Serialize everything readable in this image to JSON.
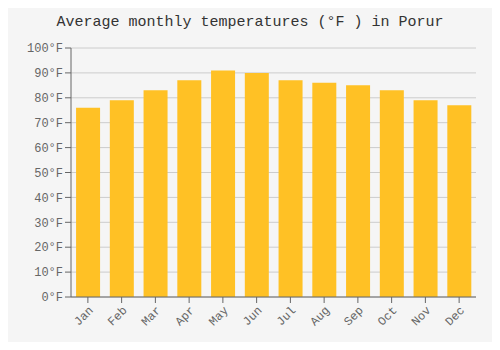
{
  "chart_data": {
    "type": "bar",
    "title": "Average monthly temperatures (°F ) in Porur",
    "categories": [
      "Jan",
      "Feb",
      "Mar",
      "Apr",
      "May",
      "Jun",
      "Jul",
      "Aug",
      "Sep",
      "Oct",
      "Nov",
      "Dec"
    ],
    "values": [
      76,
      79,
      83,
      87,
      91,
      90,
      87,
      86,
      85,
      83,
      79,
      77
    ],
    "color": "#FFC125",
    "ylim": [
      0,
      100
    ],
    "yticks": [
      {
        "value": 0,
        "label": "0°F"
      },
      {
        "value": 10,
        "label": "10°F"
      },
      {
        "value": 20,
        "label": "20°F"
      },
      {
        "value": 30,
        "label": "30°F"
      },
      {
        "value": 40,
        "label": "40°F"
      },
      {
        "value": 50,
        "label": "50°F"
      },
      {
        "value": 60,
        "label": "60°F"
      },
      {
        "value": 70,
        "label": "70°F"
      },
      {
        "value": 80,
        "label": "80°F"
      },
      {
        "value": 90,
        "label": "90°F"
      },
      {
        "value": 100,
        "label": "100°F"
      }
    ],
    "grid": true
  }
}
